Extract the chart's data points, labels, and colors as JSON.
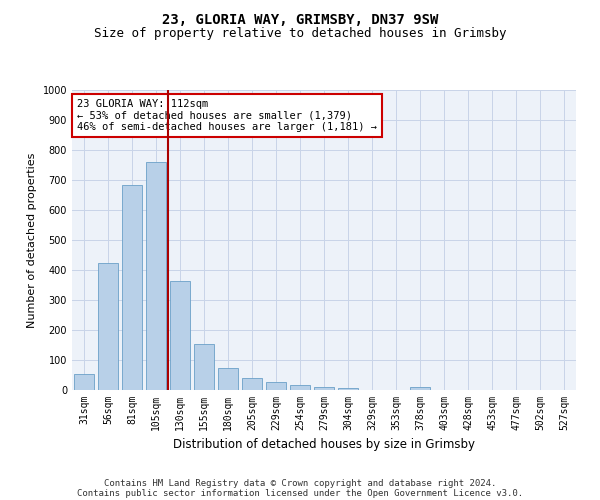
{
  "title_line1": "23, GLORIA WAY, GRIMSBY, DN37 9SW",
  "title_line2": "Size of property relative to detached houses in Grimsby",
  "xlabel": "Distribution of detached houses by size in Grimsby",
  "ylabel": "Number of detached properties",
  "categories": [
    "31sqm",
    "56sqm",
    "81sqm",
    "105sqm",
    "130sqm",
    "155sqm",
    "180sqm",
    "205sqm",
    "229sqm",
    "254sqm",
    "279sqm",
    "304sqm",
    "329sqm",
    "353sqm",
    "378sqm",
    "403sqm",
    "428sqm",
    "453sqm",
    "477sqm",
    "502sqm",
    "527sqm"
  ],
  "values": [
    52,
    422,
    684,
    760,
    362,
    153,
    75,
    40,
    27,
    18,
    10,
    8,
    0,
    0,
    10,
    0,
    0,
    0,
    0,
    0,
    0
  ],
  "bar_color": "#b8d0e8",
  "bar_edge_color": "#6aa0c8",
  "vline_x_index": 3,
  "vline_color": "#aa0000",
  "annotation_text": "23 GLORIA WAY: 112sqm\n← 53% of detached houses are smaller (1,379)\n46% of semi-detached houses are larger (1,181) →",
  "annotation_box_color": "#ffffff",
  "annotation_box_edge_color": "#cc0000",
  "ylim": [
    0,
    1000
  ],
  "yticks": [
    0,
    100,
    200,
    300,
    400,
    500,
    600,
    700,
    800,
    900,
    1000
  ],
  "grid_color": "#c8d4e8",
  "background_color": "#edf2f9",
  "footer_line1": "Contains HM Land Registry data © Crown copyright and database right 2024.",
  "footer_line2": "Contains public sector information licensed under the Open Government Licence v3.0.",
  "title_fontsize": 10,
  "subtitle_fontsize": 9,
  "xlabel_fontsize": 8.5,
  "ylabel_fontsize": 8,
  "tick_fontsize": 7,
  "annotation_fontsize": 7.5,
  "footer_fontsize": 6.5
}
